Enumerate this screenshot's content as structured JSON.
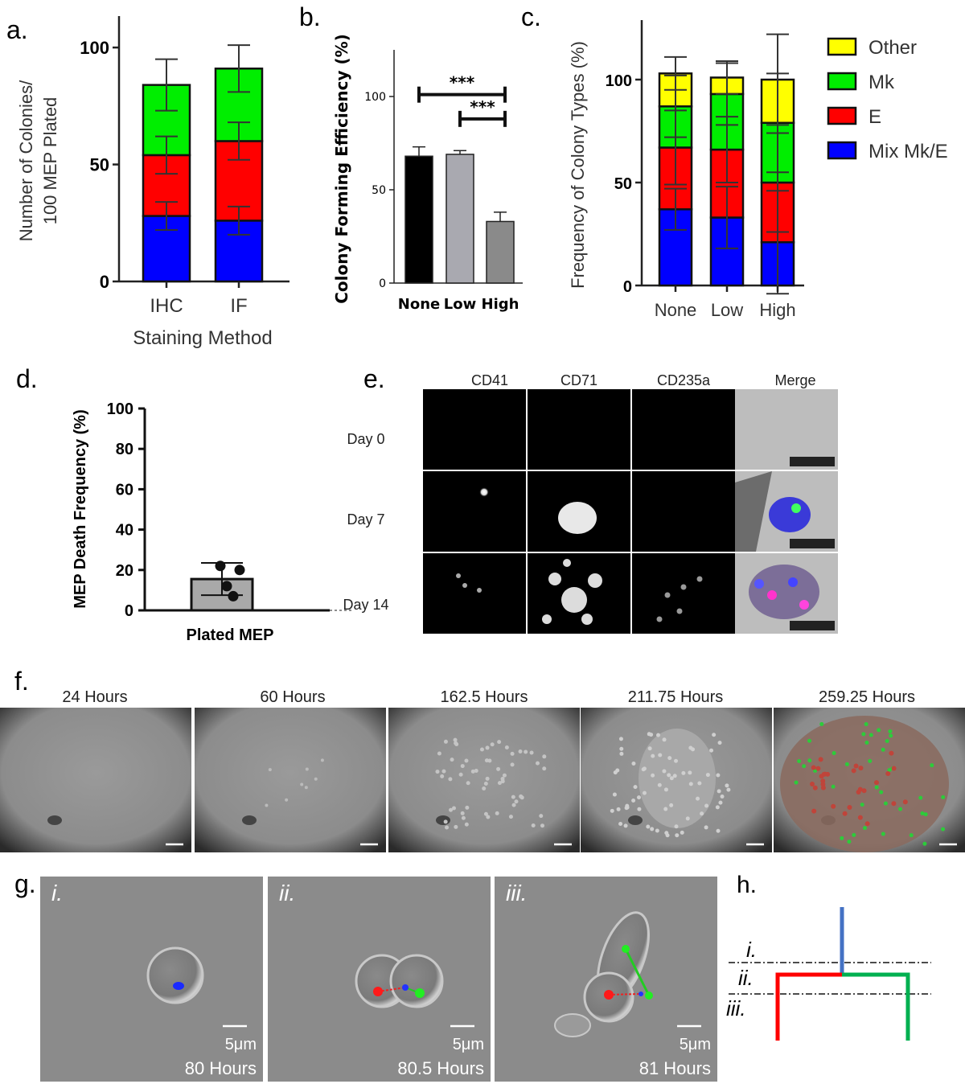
{
  "panel_letters": {
    "a": "a.",
    "b": "b.",
    "c": "c.",
    "d": "d.",
    "e": "e.",
    "f": "f.",
    "g": "g.",
    "h": "h."
  },
  "chart_data": [
    {
      "id": "a",
      "type": "bar",
      "stacked": true,
      "categories": [
        "IHC",
        "IF"
      ],
      "series": [
        {
          "name": "Mix Mk/E",
          "color": "#0000ff",
          "values": [
            28,
            26
          ],
          "err": [
            6,
            6
          ]
        },
        {
          "name": "E",
          "color": "#ff0000",
          "values": [
            26,
            34
          ],
          "err": [
            8,
            8
          ]
        },
        {
          "name": "Mk",
          "color": "#00ee00",
          "values": [
            30,
            31
          ],
          "err": [
            11,
            10
          ]
        }
      ],
      "ylabel_lines": [
        "Number of Colonies/",
        "100  MEP Plated"
      ],
      "xlabel": "Staining Method",
      "yticks": [
        0,
        50,
        100
      ],
      "ylim": [
        0,
        110
      ]
    },
    {
      "id": "b",
      "type": "bar",
      "categories": [
        "None",
        "Low",
        "High"
      ],
      "values": [
        68,
        69,
        33
      ],
      "err": [
        5,
        2,
        5
      ],
      "colors": [
        "#000000",
        "#a9a9b0",
        "#8a8a8a"
      ],
      "ylabel": "Colony  Forming Efficiency (%)",
      "yticks": [
        0,
        50,
        100
      ],
      "ylim": [
        0,
        125
      ],
      "significance": [
        {
          "from": "None",
          "to": "High",
          "label": "***",
          "y": 101
        },
        {
          "from": "Low",
          "to": "High",
          "label": "***",
          "y": 88
        }
      ]
    },
    {
      "id": "c",
      "type": "bar",
      "stacked": true,
      "categories": [
        "None",
        "Low",
        "High"
      ],
      "series": [
        {
          "name": "Mix Mk/E",
          "color": "#0000ff",
          "values": [
            37,
            33,
            21
          ],
          "err": [
            10,
            15,
            25
          ]
        },
        {
          "name": "E",
          "color": "#ff0000",
          "values": [
            30,
            33,
            29
          ],
          "err": [
            18,
            16,
            24
          ]
        },
        {
          "name": "Mk",
          "color": "#00ee00",
          "values": [
            20,
            27,
            29
          ],
          "err": [
            15,
            15,
            24
          ]
        },
        {
          "name": "Other",
          "color": "#ffff00",
          "values": [
            16,
            8,
            21
          ],
          "err": [
            8,
            8,
            22
          ]
        }
      ],
      "legend": [
        "Other",
        "Mk",
        "E",
        "Mix Mk/E"
      ],
      "ylabel": "Frequency of Colony Types (%)",
      "yticks": [
        0,
        50,
        100
      ],
      "ylim": [
        0,
        125
      ]
    },
    {
      "id": "d",
      "type": "bar",
      "categories": [
        "Plated MEP"
      ],
      "values": [
        15.5
      ],
      "err": [
        8
      ],
      "points": [
        22,
        20,
        12,
        7
      ],
      "ylabel": "MEP Death Frequency (%)",
      "yticks": [
        0,
        20,
        40,
        60,
        80,
        100
      ],
      "ylim": [
        0,
        100
      ]
    }
  ],
  "panel_e": {
    "columns": [
      "CD41",
      "CD71",
      "CD235a",
      "Merge"
    ],
    "rows": [
      "Day 0",
      "Day 7",
      "Day 14"
    ]
  },
  "panel_f": {
    "timepoints": [
      "24 Hours",
      "60 Hours",
      "162.5 Hours",
      "211.75 Hours",
      "259.25 Hours"
    ]
  },
  "panel_g": {
    "frames": [
      {
        "roman": "i.",
        "scale": "5μm",
        "time": "80 Hours"
      },
      {
        "roman": "ii.",
        "scale": "5μm",
        "time": "80.5 Hours"
      },
      {
        "roman": "iii.",
        "scale": "5μm",
        "time": "81 Hours"
      }
    ]
  },
  "panel_h": {
    "levels": [
      "i.",
      "ii.",
      "iii."
    ]
  }
}
